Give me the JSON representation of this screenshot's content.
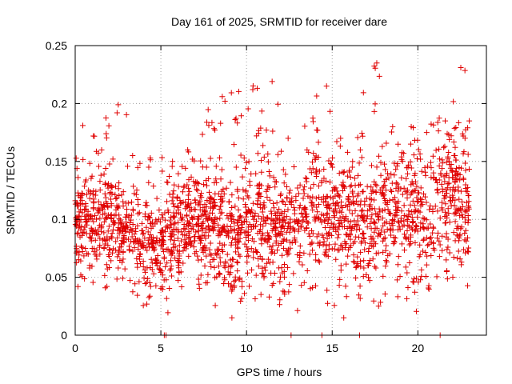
{
  "chart_data": {
    "type": "scatter",
    "title": "Day 161 of 2025, SRMTID for receiver dare",
    "xlabel": "GPS time / hours",
    "ylabel": "SRMTID / TECUs",
    "xlim": [
      0,
      24
    ],
    "ylim": [
      0,
      0.25
    ],
    "x_ticks": [
      0,
      5,
      10,
      15,
      20
    ],
    "x_tick_labels": [
      "0",
      "5",
      "10",
      "15",
      "20"
    ],
    "y_ticks": [
      0,
      0.05,
      0.1,
      0.15,
      0.2,
      0.25
    ],
    "y_tick_labels": [
      "0",
      "0.05",
      "0.1",
      "0.15",
      "0.2",
      "0.25"
    ],
    "grid": true,
    "marker": "plus",
    "series_color": "#e00000",
    "data_range": [
      0,
      23.0
    ],
    "zero_points_x": [
      5.2,
      5.3,
      12.6,
      14.4,
      16.6,
      21.3
    ],
    "binned_stats": [
      {
        "x": 0,
        "median": 0.1,
        "spread": 0.022,
        "max": 0.181
      },
      {
        "x": 1,
        "median": 0.098,
        "spread": 0.024,
        "max": 0.16
      },
      {
        "x": 2,
        "median": 0.093,
        "spread": 0.025,
        "max": 0.199
      },
      {
        "x": 3,
        "median": 0.088,
        "spread": 0.022,
        "max": 0.155
      },
      {
        "x": 4,
        "median": 0.083,
        "spread": 0.022,
        "max": 0.153
      },
      {
        "x": 5,
        "median": 0.073,
        "spread": 0.02,
        "max": 0.15
      },
      {
        "x": 6,
        "median": 0.09,
        "spread": 0.024,
        "max": 0.16
      },
      {
        "x": 7,
        "median": 0.092,
        "spread": 0.022,
        "max": 0.145
      },
      {
        "x": 8,
        "median": 0.097,
        "spread": 0.027,
        "max": 0.206
      },
      {
        "x": 9,
        "median": 0.082,
        "spread": 0.022,
        "max": 0.145
      },
      {
        "x": 10,
        "median": 0.096,
        "spread": 0.028,
        "max": 0.212
      },
      {
        "x": 11,
        "median": 0.103,
        "spread": 0.028,
        "max": 0.219
      },
      {
        "x": 12,
        "median": 0.09,
        "spread": 0.025,
        "max": 0.17
      },
      {
        "x": 13,
        "median": 0.09,
        "spread": 0.025,
        "max": 0.16
      },
      {
        "x": 14,
        "median": 0.103,
        "spread": 0.03,
        "max": 0.215
      },
      {
        "x": 15,
        "median": 0.103,
        "spread": 0.026,
        "max": 0.17
      },
      {
        "x": 16,
        "median": 0.101,
        "spread": 0.025,
        "max": 0.16
      },
      {
        "x": 17,
        "median": 0.098,
        "spread": 0.03,
        "max": 0.235
      },
      {
        "x": 18,
        "median": 0.103,
        "spread": 0.028,
        "max": 0.18
      },
      {
        "x": 19,
        "median": 0.105,
        "spread": 0.028,
        "max": 0.18
      },
      {
        "x": 20,
        "median": 0.098,
        "spread": 0.03,
        "max": 0.175
      },
      {
        "x": 21,
        "median": 0.105,
        "spread": 0.03,
        "max": 0.185
      },
      {
        "x": 22,
        "median": 0.12,
        "spread": 0.035,
        "max": 0.231
      },
      {
        "x": 23,
        "median": 0.105,
        "spread": 0.03,
        "max": 0.185
      }
    ]
  }
}
